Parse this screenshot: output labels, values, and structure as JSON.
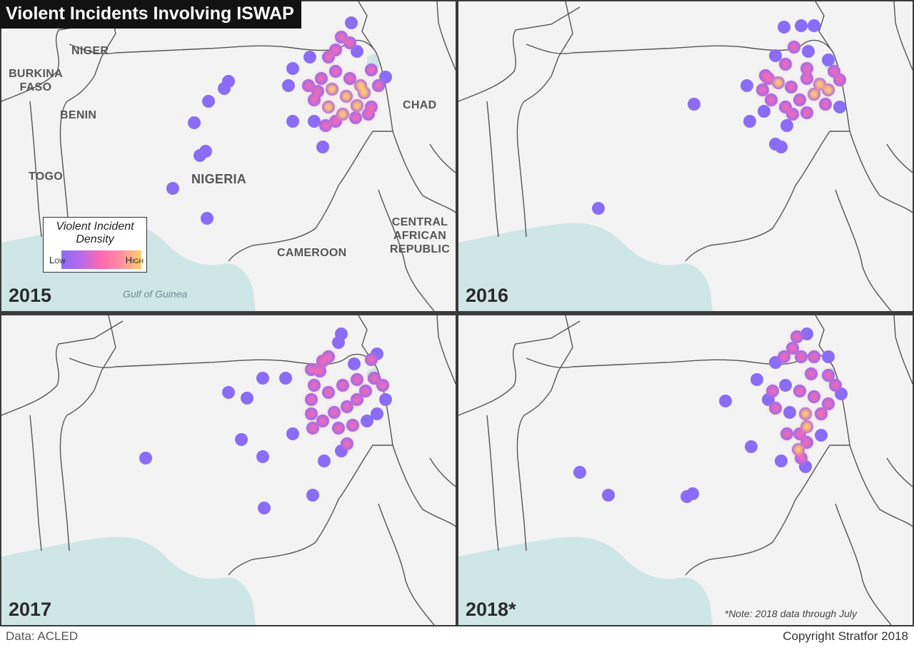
{
  "title": "Violent Incidents Involving ISWAP",
  "legend": {
    "title": "Violent Incident Density",
    "low": "Low",
    "high": "High"
  },
  "colors": {
    "sea": "#cfe6e7",
    "land": "#f3f3f3",
    "border": "#555555",
    "low": "#8a6cf6",
    "mid": "#ff6ab0",
    "high": "#ffd36a"
  },
  "labels": {
    "niger": "NIGER",
    "burkina": "BURKINA FASO",
    "benin": "BENIN",
    "togo": "TOGO",
    "nigeria": "NIGERIA",
    "chad": "CHAD",
    "cameroon": "CAMEROON",
    "car": "CENTRAL AFRICAN REPUBLIC",
    "gulf": "Gulf of Guinea"
  },
  "panels": [
    {
      "year": "2015"
    },
    {
      "year": "2016"
    },
    {
      "year": "2017"
    },
    {
      "year": "2018*",
      "note": "*Note: 2018 data through July"
    }
  ],
  "footer": {
    "source": "Data: ACLED",
    "copyright": "Copyright Stratfor 2018"
  }
}
